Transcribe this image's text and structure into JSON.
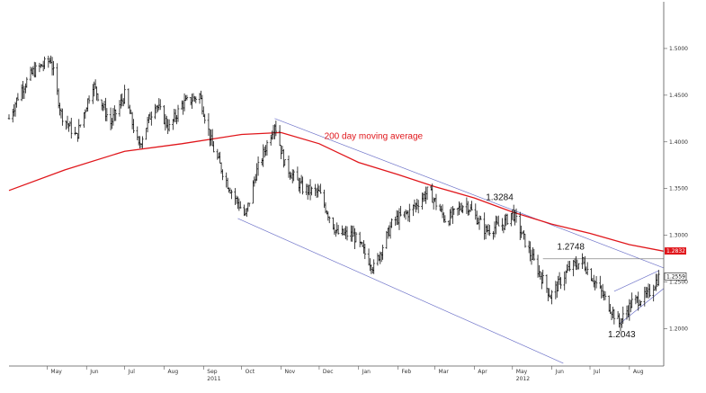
{
  "chart_data": {
    "type": "ohlc",
    "title": "",
    "xlabel": "",
    "ylabel": "",
    "ylim": [
      1.16,
      1.55
    ],
    "xlim": [
      "2011-04-01",
      "2012-08-28"
    ],
    "y_ticks": [
      "1.5000",
      "1.4500",
      "1.4000",
      "1.3500",
      "1.3000",
      "1.2500",
      "1.2000"
    ],
    "y_tick_values": [
      1.5,
      1.45,
      1.4,
      1.35,
      1.3,
      1.25,
      1.2
    ],
    "x_ticks": [
      {
        "label": "May",
        "date": "2011-05-01"
      },
      {
        "label": "Jun",
        "date": "2011-06-01"
      },
      {
        "label": "Jul",
        "date": "2011-07-01"
      },
      {
        "label": "Aug",
        "date": "2011-08-01"
      },
      {
        "label": "Sep",
        "date": "2011-09-01"
      },
      {
        "label": "Oct",
        "date": "2011-10-01"
      },
      {
        "label": "Nov",
        "date": "2011-11-01"
      },
      {
        "label": "Dec",
        "date": "2011-12-01"
      },
      {
        "label": "Jan",
        "date": "2012-01-01"
      },
      {
        "label": "Feb",
        "date": "2012-02-01"
      },
      {
        "label": "Mar",
        "date": "2012-03-01"
      },
      {
        "label": "Apr",
        "date": "2012-04-01"
      },
      {
        "label": "May",
        "date": "2012-05-01"
      },
      {
        "label": "Jun",
        "date": "2012-06-01"
      },
      {
        "label": "Jul",
        "date": "2012-07-01"
      },
      {
        "label": "Aug",
        "date": "2012-08-01"
      }
    ],
    "year_labels": [
      {
        "label": "2011",
        "date": "2011-09-01"
      },
      {
        "label": "2012",
        "date": "2012-05-01"
      }
    ],
    "price_path": [
      {
        "d": "2011-04-01",
        "v": 1.425
      },
      {
        "d": "2011-04-10",
        "v": 1.455
      },
      {
        "d": "2011-04-20",
        "v": 1.475
      },
      {
        "d": "2011-05-04",
        "v": 1.488
      },
      {
        "d": "2011-05-12",
        "v": 1.43
      },
      {
        "d": "2011-05-24",
        "v": 1.405
      },
      {
        "d": "2011-06-06",
        "v": 1.462
      },
      {
        "d": "2011-06-20",
        "v": 1.42
      },
      {
        "d": "2011-07-01",
        "v": 1.45
      },
      {
        "d": "2011-07-12",
        "v": 1.395
      },
      {
        "d": "2011-07-25",
        "v": 1.442
      },
      {
        "d": "2011-08-05",
        "v": 1.415
      },
      {
        "d": "2011-08-15",
        "v": 1.44
      },
      {
        "d": "2011-08-29",
        "v": 1.45
      },
      {
        "d": "2011-09-08",
        "v": 1.395
      },
      {
        "d": "2011-09-20",
        "v": 1.355
      },
      {
        "d": "2011-10-04",
        "v": 1.32
      },
      {
        "d": "2011-10-12",
        "v": 1.365
      },
      {
        "d": "2011-10-27",
        "v": 1.42
      },
      {
        "d": "2011-11-04",
        "v": 1.375
      },
      {
        "d": "2011-11-18",
        "v": 1.35
      },
      {
        "d": "2011-12-01",
        "v": 1.345
      },
      {
        "d": "2011-12-15",
        "v": 1.302
      },
      {
        "d": "2011-12-28",
        "v": 1.3
      },
      {
        "d": "2012-01-13",
        "v": 1.265
      },
      {
        "d": "2012-01-28",
        "v": 1.315
      },
      {
        "d": "2012-02-10",
        "v": 1.325
      },
      {
        "d": "2012-02-25",
        "v": 1.348
      },
      {
        "d": "2012-03-10",
        "v": 1.315
      },
      {
        "d": "2012-03-25",
        "v": 1.335
      },
      {
        "d": "2012-04-10",
        "v": 1.305
      },
      {
        "d": "2012-04-24",
        "v": 1.312
      },
      {
        "d": "2012-05-01",
        "v": 1.325
      },
      {
        "d": "2012-05-15",
        "v": 1.28
      },
      {
        "d": "2012-05-31",
        "v": 1.235
      },
      {
        "d": "2012-06-15",
        "v": 1.265
      },
      {
        "d": "2012-06-25",
        "v": 1.272
      },
      {
        "d": "2012-07-05",
        "v": 1.25
      },
      {
        "d": "2012-07-24",
        "v": 1.206
      },
      {
        "d": "2012-08-03",
        "v": 1.228
      },
      {
        "d": "2012-08-15",
        "v": 1.235
      },
      {
        "d": "2012-08-24",
        "v": 1.255
      }
    ],
    "moving_average": {
      "name": "200 day moving average",
      "points": [
        {
          "d": "2011-04-01",
          "v": 1.348
        },
        {
          "d": "2011-05-15",
          "v": 1.37
        },
        {
          "d": "2011-07-01",
          "v": 1.39
        },
        {
          "d": "2011-08-15",
          "v": 1.398
        },
        {
          "d": "2011-10-01",
          "v": 1.408
        },
        {
          "d": "2011-11-01",
          "v": 1.41
        },
        {
          "d": "2011-12-01",
          "v": 1.398
        },
        {
          "d": "2012-01-01",
          "v": 1.378
        },
        {
          "d": "2012-02-01",
          "v": 1.365
        },
        {
          "d": "2012-03-01",
          "v": 1.352
        },
        {
          "d": "2012-04-01",
          "v": 1.34
        },
        {
          "d": "2012-05-01",
          "v": 1.325
        },
        {
          "d": "2012-06-01",
          "v": 1.312
        },
        {
          "d": "2012-07-01",
          "v": 1.302
        },
        {
          "d": "2012-08-01",
          "v": 1.29
        },
        {
          "d": "2012-08-28",
          "v": 1.283
        }
      ],
      "last_value": "1.2832",
      "color": "#e0161b"
    },
    "last_price": "1.2559",
    "annotations": [
      {
        "text": "1.3284",
        "d": "2012-04-20",
        "v": 1.328
      },
      {
        "text": "1.2748",
        "d": "2012-06-15",
        "v": 1.275
      },
      {
        "text": "1.2043",
        "d": "2012-07-25",
        "v": 1.2043
      }
    ],
    "trendlines": [
      {
        "from": {
          "d": "2011-10-27",
          "v": 1.425
        },
        "to": {
          "d": "2012-08-28",
          "v": 1.265
        }
      },
      {
        "from": {
          "d": "2011-09-28",
          "v": 1.318
        },
        "to": {
          "d": "2012-06-10",
          "v": 1.163
        }
      },
      {
        "from": {
          "d": "2012-05-25",
          "v": 1.2748
        },
        "to": {
          "d": "2012-08-28",
          "v": 1.2748
        }
      },
      {
        "from": {
          "d": "2012-07-20",
          "v": 1.24
        },
        "to": {
          "d": "2012-08-24",
          "v": 1.262
        }
      },
      {
        "from": {
          "d": "2012-07-24",
          "v": 1.205
        },
        "to": {
          "d": "2012-08-28",
          "v": 1.243
        }
      }
    ],
    "colors": {
      "bars": "#111111",
      "trendline": "#6f74c9",
      "moving_average": "#e0161b",
      "hline": "#888888"
    }
  }
}
